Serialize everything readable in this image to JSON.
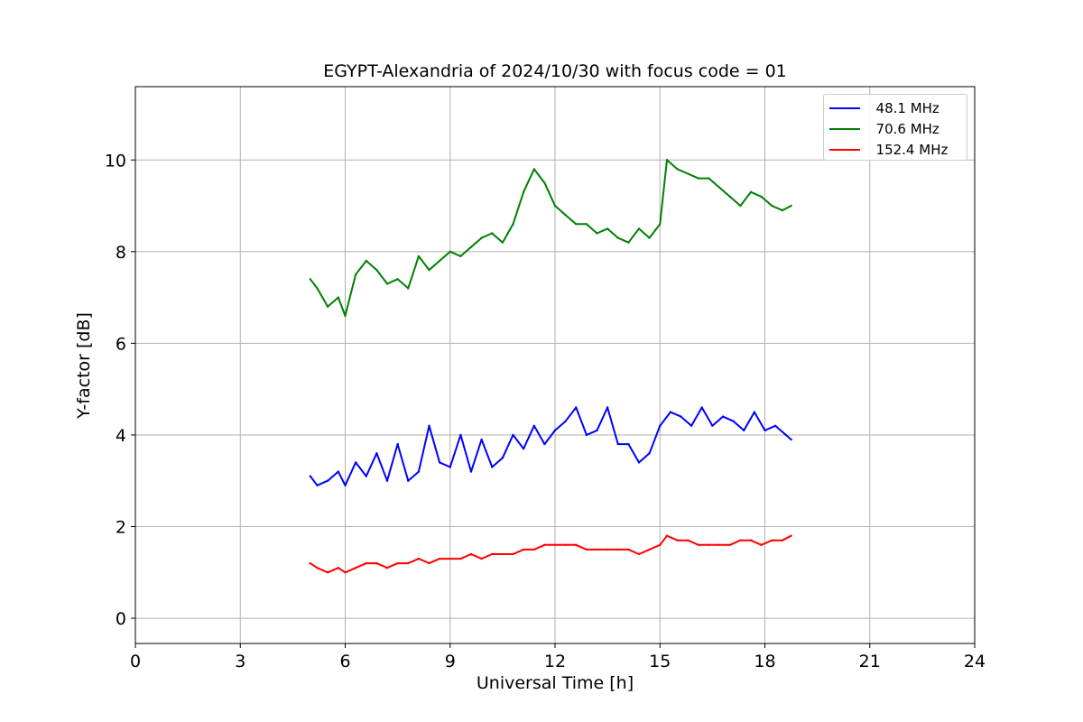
{
  "chart_data": {
    "type": "line",
    "title": "EGYPT-Alexandria of 2024/10/30 with focus code = 01",
    "xlabel": "Universal Time [h]",
    "ylabel": "Y-factor [dB]",
    "xlim": [
      0,
      24
    ],
    "ylim": [
      -0.55,
      11.6
    ],
    "xticks": [
      0,
      3,
      6,
      9,
      12,
      15,
      18,
      21,
      24
    ],
    "xtick_labels": [
      "0",
      "3",
      "6",
      "9",
      "12",
      "15",
      "18",
      "21",
      "24"
    ],
    "yticks": [
      0,
      2,
      4,
      6,
      8,
      10
    ],
    "ytick_labels": [
      "0",
      "2",
      "4",
      "6",
      "8",
      "10"
    ],
    "grid": true,
    "legend_position": "top-right",
    "series": [
      {
        "name": "  48.1 MHz",
        "color": "#0000ff",
        "x": [
          5.0,
          5.2,
          5.5,
          5.8,
          6.0,
          6.3,
          6.6,
          6.9,
          7.2,
          7.5,
          7.8,
          8.1,
          8.4,
          8.7,
          9.0,
          9.3,
          9.6,
          9.9,
          10.2,
          10.5,
          10.8,
          11.1,
          11.4,
          11.7,
          12.0,
          12.3,
          12.6,
          12.9,
          13.2,
          13.5,
          13.8,
          14.1,
          14.4,
          14.7,
          15.0,
          15.3,
          15.6,
          15.9,
          16.2,
          16.5,
          16.8,
          17.1,
          17.4,
          17.7,
          18.0,
          18.3,
          18.6,
          18.75
        ],
        "y": [
          3.1,
          2.9,
          3.0,
          3.2,
          2.9,
          3.4,
          3.1,
          3.6,
          3.0,
          3.8,
          3.0,
          3.2,
          4.2,
          3.4,
          3.3,
          4.0,
          3.2,
          3.9,
          3.3,
          3.5,
          4.0,
          3.7,
          4.2,
          3.8,
          4.1,
          4.3,
          4.6,
          4.0,
          4.1,
          4.6,
          3.8,
          3.8,
          3.4,
          3.6,
          4.2,
          4.5,
          4.4,
          4.2,
          4.6,
          4.2,
          4.4,
          4.3,
          4.1,
          4.5,
          4.1,
          4.2,
          4.0,
          3.9
        ]
      },
      {
        "name": "  70.6 MHz",
        "color": "#008000",
        "x": [
          5.0,
          5.2,
          5.5,
          5.8,
          6.0,
          6.3,
          6.6,
          6.9,
          7.2,
          7.5,
          7.8,
          8.1,
          8.4,
          8.7,
          9.0,
          9.3,
          9.6,
          9.9,
          10.2,
          10.5,
          10.8,
          11.1,
          11.4,
          11.7,
          12.0,
          12.3,
          12.6,
          12.9,
          13.2,
          13.5,
          13.8,
          14.1,
          14.4,
          14.7,
          15.0,
          15.2,
          15.5,
          15.8,
          16.1,
          16.4,
          16.7,
          17.0,
          17.3,
          17.6,
          17.9,
          18.2,
          18.5,
          18.75
        ],
        "y": [
          7.4,
          7.2,
          6.8,
          7.0,
          6.6,
          7.5,
          7.8,
          7.6,
          7.3,
          7.4,
          7.2,
          7.9,
          7.6,
          7.8,
          8.0,
          7.9,
          8.1,
          8.3,
          8.4,
          8.2,
          8.6,
          9.3,
          9.8,
          9.5,
          9.0,
          8.8,
          8.6,
          8.6,
          8.4,
          8.5,
          8.3,
          8.2,
          8.5,
          8.3,
          8.6,
          10.0,
          9.8,
          9.7,
          9.6,
          9.6,
          9.4,
          9.2,
          9.0,
          9.3,
          9.2,
          9.0,
          8.9,
          9.0
        ]
      },
      {
        "name": "  152.4 MHz",
        "color": "#ff0000",
        "x": [
          5.0,
          5.2,
          5.5,
          5.8,
          6.0,
          6.3,
          6.6,
          6.9,
          7.2,
          7.5,
          7.8,
          8.1,
          8.4,
          8.7,
          9.0,
          9.3,
          9.6,
          9.9,
          10.2,
          10.5,
          10.8,
          11.1,
          11.4,
          11.7,
          12.0,
          12.3,
          12.6,
          12.9,
          13.2,
          13.5,
          13.8,
          14.1,
          14.4,
          14.7,
          15.0,
          15.2,
          15.5,
          15.8,
          16.1,
          16.4,
          16.7,
          17.0,
          17.3,
          17.6,
          17.9,
          18.2,
          18.5,
          18.75
        ],
        "y": [
          1.2,
          1.1,
          1.0,
          1.1,
          1.0,
          1.1,
          1.2,
          1.2,
          1.1,
          1.2,
          1.2,
          1.3,
          1.2,
          1.3,
          1.3,
          1.3,
          1.4,
          1.3,
          1.4,
          1.4,
          1.4,
          1.5,
          1.5,
          1.6,
          1.6,
          1.6,
          1.6,
          1.5,
          1.5,
          1.5,
          1.5,
          1.5,
          1.4,
          1.5,
          1.6,
          1.8,
          1.7,
          1.7,
          1.6,
          1.6,
          1.6,
          1.6,
          1.7,
          1.7,
          1.6,
          1.7,
          1.7,
          1.8
        ]
      }
    ]
  }
}
